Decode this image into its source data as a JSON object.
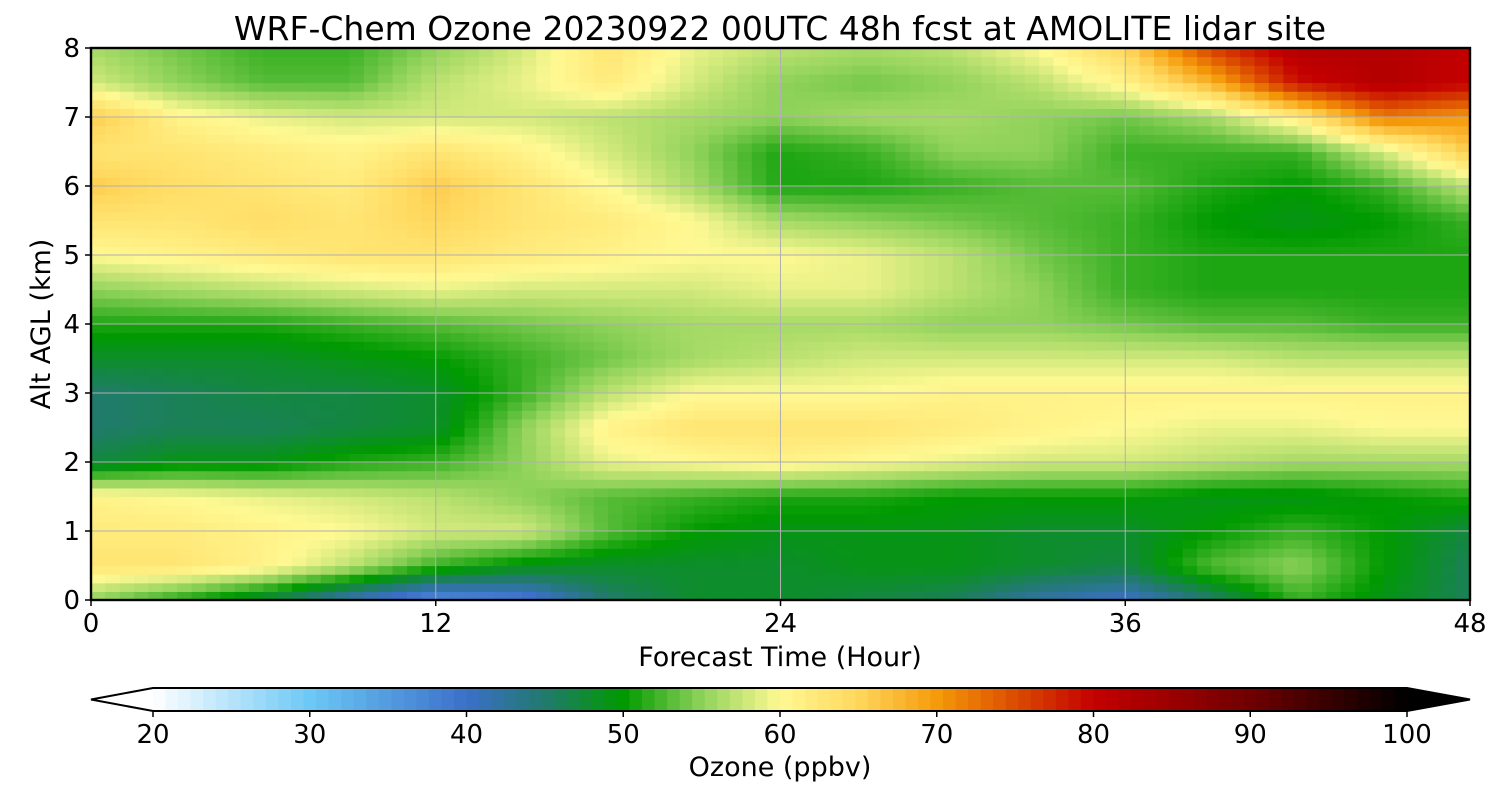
{
  "chart_data": {
    "type": "heatmap",
    "title": "WRF-Chem Ozone  20230922 00UTC 48h fcst at AMOLITE lidar site",
    "xlabel": "Forecast Time (Hour)",
    "ylabel": "Alt AGL (km)",
    "xlim": [
      0,
      48
    ],
    "ylim": [
      0,
      8
    ],
    "xticks": [
      0,
      12,
      24,
      36,
      48
    ],
    "yticks": [
      0,
      1,
      2,
      3,
      4,
      5,
      6,
      7,
      8
    ],
    "xtick_labels": [
      "0",
      "12",
      "24",
      "36",
      "48"
    ],
    "ytick_labels": [
      "0",
      "1",
      "2",
      "3",
      "4",
      "5",
      "6",
      "7",
      "8"
    ],
    "grid": true,
    "colorbar": {
      "label": "Ozone  (ppbv)",
      "range": [
        20,
        100
      ],
      "extend": "both",
      "ticks": [
        20,
        30,
        40,
        50,
        60,
        70,
        80,
        90,
        100
      ],
      "tick_labels": [
        "20",
        "30",
        "40",
        "50",
        "60",
        "70",
        "80",
        "90",
        "100"
      ],
      "stops": [
        {
          "v": 20,
          "c": "#ffffff"
        },
        {
          "v": 30,
          "c": "#6cc8f5"
        },
        {
          "v": 40,
          "c": "#3b6fc9"
        },
        {
          "v": 45,
          "c": "#217a6d"
        },
        {
          "v": 50,
          "c": "#009a00"
        },
        {
          "v": 55,
          "c": "#8fd25a"
        },
        {
          "v": 60,
          "c": "#fff993"
        },
        {
          "v": 65,
          "c": "#ffd75c"
        },
        {
          "v": 70,
          "c": "#f59a0a"
        },
        {
          "v": 75,
          "c": "#dc4c00"
        },
        {
          "v": 80,
          "c": "#c40000"
        },
        {
          "v": 90,
          "c": "#700000"
        },
        {
          "v": 100,
          "c": "#000000"
        }
      ]
    },
    "x": [
      0,
      3,
      6,
      9,
      12,
      15,
      18,
      21,
      24,
      27,
      30,
      33,
      36,
      39,
      42,
      45,
      48
    ],
    "y": [
      0,
      0.5,
      1,
      1.5,
      2,
      2.5,
      3,
      3.5,
      4,
      4.5,
      5,
      5.5,
      6,
      6.5,
      7,
      7.5,
      8
    ],
    "z": [
      [
        55,
        51,
        47,
        41,
        36,
        38,
        45,
        48,
        48,
        47,
        46,
        42,
        40,
        45,
        52,
        49,
        46
      ],
      [
        63,
        63,
        61,
        57,
        52,
        49,
        48,
        48,
        48,
        49,
        49,
        48,
        47,
        53,
        55,
        50,
        46
      ],
      [
        62,
        62,
        61,
        60,
        58,
        58,
        53,
        50,
        49,
        49,
        49,
        48,
        48,
        50,
        52,
        50,
        47
      ],
      [
        61,
        60,
        59,
        58,
        57,
        55,
        53,
        52,
        51,
        51,
        50,
        50,
        50,
        49,
        49,
        50,
        51
      ],
      [
        47,
        49,
        49,
        51,
        52,
        55,
        59,
        60,
        61,
        60,
        59,
        58,
        58,
        57,
        56,
        56,
        56
      ],
      [
        45,
        46,
        46,
        47,
        48,
        55,
        61,
        63,
        63,
        63,
        62,
        61,
        60,
        59,
        59,
        60,
        60
      ],
      [
        45,
        46,
        47,
        47,
        48,
        52,
        57,
        60,
        60,
        60,
        61,
        61,
        61,
        61,
        61,
        61,
        61
      ],
      [
        48,
        48,
        48,
        49,
        50,
        52,
        54,
        56,
        57,
        58,
        58,
        58,
        58,
        58,
        57,
        57,
        57
      ],
      [
        51,
        51,
        51,
        52,
        53,
        54,
        55,
        56,
        56,
        56,
        55,
        55,
        54,
        53,
        53,
        52,
        52
      ],
      [
        55,
        56,
        57,
        58,
        59,
        58,
        58,
        58,
        59,
        59,
        57,
        55,
        52,
        51,
        51,
        51,
        51
      ],
      [
        60,
        61,
        62,
        63,
        63,
        62,
        61,
        60,
        60,
        59,
        57,
        54,
        52,
        51,
        51,
        51,
        51
      ],
      [
        63,
        63,
        64,
        63,
        65,
        63,
        62,
        60,
        56,
        55,
        54,
        53,
        52,
        50,
        49,
        50,
        52
      ],
      [
        66,
        64,
        63,
        62,
        66,
        63,
        60,
        56,
        51,
        51,
        52,
        53,
        53,
        51,
        50,
        52,
        57
      ],
      [
        63,
        63,
        62,
        61,
        63,
        61,
        58,
        55,
        51,
        52,
        55,
        55,
        52,
        52,
        52,
        58,
        66
      ],
      [
        66,
        61,
        59,
        58,
        58,
        58,
        57,
        56,
        55,
        56,
        56,
        55,
        54,
        56,
        62,
        72,
        70
      ],
      [
        58,
        55,
        53,
        53,
        57,
        59,
        62,
        58,
        55,
        54,
        55,
        57,
        61,
        68,
        79,
        82,
        80
      ],
      [
        56,
        54,
        52,
        52,
        55,
        58,
        63,
        59,
        57,
        56,
        57,
        60,
        65,
        76,
        82,
        82,
        80
      ]
    ]
  }
}
